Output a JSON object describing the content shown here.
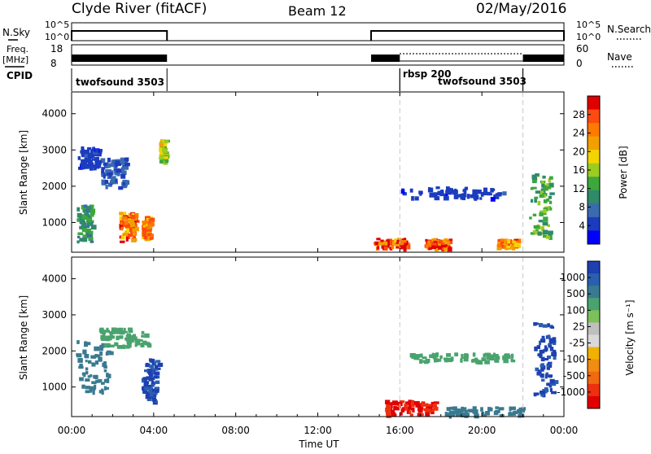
{
  "header": {
    "radar": "Clyde River (fitACF)",
    "beam": "Beam 12",
    "date": "02/May/2016"
  },
  "top_panels": {
    "nsky_label": "N.Sky",
    "nsky_ticks": [
      "10^5",
      "10^0"
    ],
    "nsearch_label": "N.Search",
    "nsearch_ticks": [
      "10^5",
      "10^0"
    ],
    "freq_label_1": "Freq.",
    "freq_label_2": "[MHz]",
    "freq_ticks": [
      "18",
      "8"
    ],
    "nave_label": "Nave",
    "nave_ticks": [
      "60",
      "0"
    ],
    "cpid_label": "CPID",
    "cpid_segments": [
      {
        "label": "twofsound 3503",
        "start_h": 0.0,
        "end_h": 4.65
      },
      {
        "label": "rbsp 200",
        "start_h": 16.0,
        "end_h": 22.0
      },
      {
        "label": "twofsound 3503",
        "start_h": 16.0,
        "end_h": 22.0
      }
    ],
    "data_blocks": [
      {
        "start_h": 0.0,
        "end_h": 4.65
      },
      {
        "start_h": 14.6,
        "end_h": 24.0
      }
    ],
    "nave_dotted": {
      "start_h": 16.0,
      "end_h": 22.0
    }
  },
  "panels": [
    {
      "name": "power",
      "ylabel": "Slant Range [km]",
      "yticks": [
        "4000",
        "3000",
        "2000",
        "1000"
      ],
      "colorbar_label": "Power [dB]",
      "colorbar_ticks": [
        "28",
        "24",
        "20",
        "16",
        "12",
        "8",
        "4"
      ],
      "colorbar_colors": [
        "#e10000",
        "#ff4a10",
        "#ff7a00",
        "#f2a000",
        "#f4d400",
        "#9ccc20",
        "#3da73d",
        "#2f8a6a",
        "#3a6ab0",
        "#1b3cbf",
        "#0000ff"
      ]
    },
    {
      "name": "velocity",
      "ylabel": "Slant Range [km]",
      "yticks": [
        "4000",
        "3000",
        "2000",
        "1000"
      ],
      "colorbar_label": "Velocity [m s⁻¹]",
      "colorbar_ticks": [
        "1000",
        "500",
        "100",
        "25",
        "-25",
        "-100",
        "-500",
        "-1000"
      ],
      "colorbar_colors": [
        "#1e40b0",
        "#2a5fb0",
        "#3a7a90",
        "#4aa36e",
        "#7cc05a",
        "#bfbfbf",
        "#d9d9d9",
        "#f2b000",
        "#f08c10",
        "#f06a10",
        "#ee3010",
        "#e00000"
      ]
    }
  ],
  "xaxis": {
    "label": "Time UT",
    "ticks": [
      "00:00",
      "04:00",
      "08:00",
      "12:00",
      "16:00",
      "20:00",
      "00:00"
    ]
  },
  "chart_data": {
    "type": "heatmap",
    "title": "Clyde River (fitACF)",
    "subtitle": "Beam 12 02/May/2016",
    "xlabel": "Time UT",
    "ylabel": "Slant Range [km]",
    "xlim": [
      0,
      24
    ],
    "ylim": [
      180,
      4600
    ],
    "grid": false,
    "vlines_h": [
      16.0,
      22.0
    ],
    "power_blobs_db": [
      {
        "t": 0.6,
        "r": 1000,
        "dt": 0.35,
        "dr": 500,
        "v": 12
      },
      {
        "t": 2.7,
        "r": 900,
        "dt": 0.4,
        "dr": 400,
        "v": 26
      },
      {
        "t": 3.6,
        "r": 900,
        "dt": 0.2,
        "dr": 300,
        "v": 24
      },
      {
        "t": 2.0,
        "r": 2400,
        "dt": 0.6,
        "dr": 400,
        "v": 8
      },
      {
        "t": 0.8,
        "r": 2800,
        "dt": 0.5,
        "dr": 300,
        "v": 6
      },
      {
        "t": 4.4,
        "r": 3000,
        "dt": 0.15,
        "dr": 300,
        "v": 18
      },
      {
        "t": 15.5,
        "r": 450,
        "dt": 0.8,
        "dr": 130,
        "v": 28
      },
      {
        "t": 17.8,
        "r": 450,
        "dt": 0.6,
        "dr": 120,
        "v": 28
      },
      {
        "t": 21.2,
        "r": 450,
        "dt": 0.5,
        "dr": 110,
        "v": 24
      },
      {
        "t": 18.5,
        "r": 1850,
        "dt": 2.5,
        "dr": 150,
        "v": 6
      },
      {
        "t": 22.8,
        "r": 1500,
        "dt": 0.5,
        "dr": 900,
        "v": 14
      }
    ],
    "velocity_blobs_ms": [
      {
        "t": 1.0,
        "r": 1600,
        "dt": 0.8,
        "dr": 700,
        "v": 100
      },
      {
        "t": 2.5,
        "r": 2400,
        "dt": 1.2,
        "dr": 250,
        "v": 25
      },
      {
        "t": 3.8,
        "r": 1200,
        "dt": 0.4,
        "dr": 600,
        "v": 500
      },
      {
        "t": 16.5,
        "r": 450,
        "dt": 1.3,
        "dr": 200,
        "v": -500
      },
      {
        "t": 20.0,
        "r": 350,
        "dt": 2.0,
        "dr": 120,
        "v": 100
      },
      {
        "t": 19.0,
        "r": 1850,
        "dt": 2.6,
        "dr": 120,
        "v": 25
      },
      {
        "t": 23.0,
        "r": 1800,
        "dt": 0.5,
        "dr": 1000,
        "v": 500
      }
    ]
  }
}
